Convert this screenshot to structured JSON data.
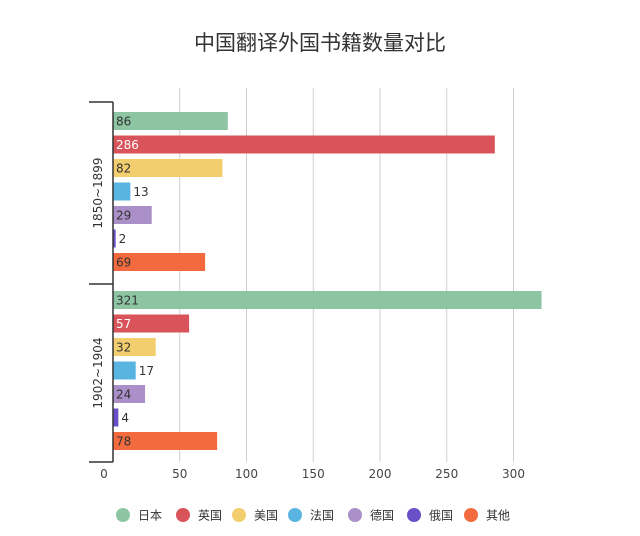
{
  "chart_data": {
    "type": "bar",
    "orientation": "horizontal",
    "title": "中国翻译外国书籍数量对比",
    "xlim": [
      0,
      325
    ],
    "x_ticks": [
      0,
      50,
      100,
      150,
      200,
      250,
      300
    ],
    "grid": true,
    "legend_position": "bottom",
    "groups": [
      "1850~1899",
      "1902~1904"
    ],
    "series": [
      {
        "name": "日本",
        "color": "#8dc5a3",
        "values": [
          86,
          321
        ]
      },
      {
        "name": "英国",
        "color": "#d9545a",
        "values": [
          286,
          57
        ]
      },
      {
        "name": "美国",
        "color": "#f2ce6e",
        "values": [
          82,
          32
        ]
      },
      {
        "name": "法国",
        "color": "#5ab4e2",
        "values": [
          13,
          17
        ]
      },
      {
        "name": "德国",
        "color": "#aa8fc8",
        "values": [
          29,
          24
        ]
      },
      {
        "name": "俄国",
        "color": "#6a4fc9",
        "values": [
          2,
          4
        ]
      },
      {
        "name": "其他",
        "color": "#f26a3d",
        "values": [
          69,
          78
        ]
      }
    ]
  }
}
